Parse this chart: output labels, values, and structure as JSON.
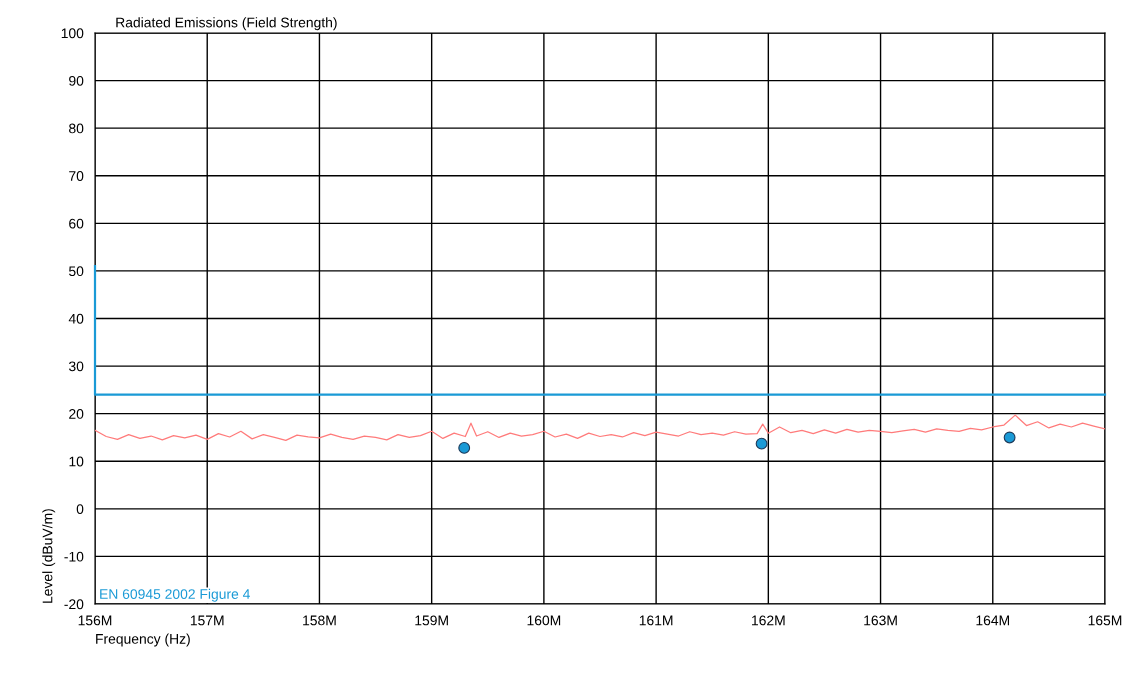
{
  "chart_data": {
    "type": "line",
    "title": "Radiated Emissions (Field Strength)",
    "xlabel": "Frequency (Hz)",
    "ylabel": "Level (dBuV/m)",
    "xlim": [
      156,
      165
    ],
    "ylim": [
      -20,
      100
    ],
    "xticks": [
      {
        "value": 156,
        "label": "156M"
      },
      {
        "value": 157,
        "label": "157M"
      },
      {
        "value": 158,
        "label": "158M"
      },
      {
        "value": 159,
        "label": "159M"
      },
      {
        "value": 160,
        "label": "160M"
      },
      {
        "value": 161,
        "label": "161M"
      },
      {
        "value": 162,
        "label": "162M"
      },
      {
        "value": 163,
        "label": "163M"
      },
      {
        "value": 164,
        "label": "164M"
      },
      {
        "value": 165,
        "label": "165M"
      }
    ],
    "yticks": [
      -20,
      -10,
      0,
      10,
      20,
      30,
      40,
      50,
      60,
      70,
      80,
      90,
      100
    ],
    "grid": true,
    "legend": false,
    "series": [
      {
        "color": "#ff7b7b",
        "x": [
          156.0,
          156.1,
          156.2,
          156.3,
          156.4,
          156.5,
          156.6,
          156.7,
          156.8,
          156.9,
          157.0,
          157.1,
          157.2,
          157.3,
          157.4,
          157.5,
          157.6,
          157.7,
          157.8,
          157.9,
          158.0,
          158.1,
          158.2,
          158.3,
          158.4,
          158.5,
          158.6,
          158.7,
          158.8,
          158.9,
          159.0,
          159.1,
          159.2,
          159.3,
          159.35,
          159.4,
          159.5,
          159.6,
          159.7,
          159.8,
          159.9,
          160.0,
          160.1,
          160.2,
          160.3,
          160.4,
          160.5,
          160.6,
          160.7,
          160.8,
          160.9,
          161.0,
          161.1,
          161.2,
          161.3,
          161.4,
          161.5,
          161.6,
          161.7,
          161.8,
          161.9,
          161.95,
          162.0,
          162.1,
          162.2,
          162.3,
          162.4,
          162.5,
          162.6,
          162.7,
          162.8,
          162.9,
          163.0,
          163.1,
          163.2,
          163.3,
          163.4,
          163.5,
          163.6,
          163.7,
          163.8,
          163.9,
          164.0,
          164.1,
          164.2,
          164.3,
          164.4,
          164.5,
          164.6,
          164.7,
          164.8,
          164.9,
          165.0
        ],
        "values": [
          16.5,
          15.2,
          14.6,
          15.6,
          14.8,
          15.3,
          14.5,
          15.4,
          14.9,
          15.5,
          14.6,
          15.8,
          15.1,
          16.3,
          14.7,
          15.6,
          15.0,
          14.4,
          15.5,
          15.1,
          14.9,
          15.7,
          15.0,
          14.6,
          15.3,
          15.0,
          14.5,
          15.6,
          15.0,
          15.4,
          16.3,
          14.8,
          15.9,
          15.2,
          18.0,
          15.3,
          16.2,
          15.0,
          15.9,
          15.3,
          15.6,
          16.3,
          15.1,
          15.7,
          14.8,
          15.9,
          15.2,
          15.6,
          15.1,
          16.0,
          15.4,
          16.1,
          15.7,
          15.3,
          16.2,
          15.6,
          15.9,
          15.5,
          16.2,
          15.7,
          15.8,
          17.8,
          15.9,
          17.2,
          16.0,
          16.5,
          15.8,
          16.6,
          15.9,
          16.7,
          16.1,
          16.5,
          16.3,
          16.0,
          16.4,
          16.7,
          16.1,
          16.8,
          16.5,
          16.3,
          16.9,
          16.6,
          17.2,
          17.6,
          19.7,
          17.5,
          18.3,
          17.0,
          17.8,
          17.2,
          18.0,
          17.4,
          16.8
        ]
      },
      {
        "type": "step",
        "color": "#1a9ad6",
        "x": [
          156,
          156,
          165
        ],
        "values": [
          51,
          24,
          24
        ]
      },
      {
        "type": "scatter",
        "color": "#1a9ad6",
        "marker": "circle",
        "x": [
          159.29,
          161.94,
          164.15
        ],
        "values": [
          12.8,
          13.7,
          15.0
        ]
      }
    ],
    "annotations": [
      "EN 60945 2002 Figure 4"
    ]
  }
}
